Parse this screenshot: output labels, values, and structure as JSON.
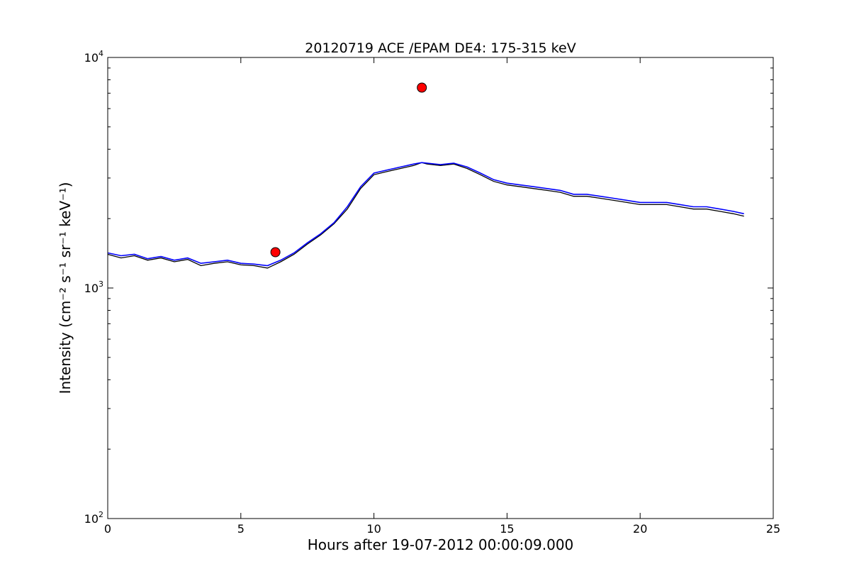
{
  "chart_data": {
    "type": "line",
    "title": "20120719 ACE /EPAM DE4: 175-315 keV",
    "xlabel": "Hours after 19-07-2012 00:00:09.000",
    "ylabel": "Intensity (cm⁻² s⁻¹ sr⁻¹ keV⁻¹)",
    "xlim": [
      0,
      25
    ],
    "ylim": [
      100,
      10000
    ],
    "yscale": "log",
    "grid": false,
    "x_ticks": [
      {
        "value": 0,
        "label": "0"
      },
      {
        "value": 5,
        "label": "5"
      },
      {
        "value": 10,
        "label": "10"
      },
      {
        "value": 15,
        "label": "15"
      },
      {
        "value": 20,
        "label": "20"
      },
      {
        "value": 25,
        "label": "25"
      }
    ],
    "y_ticks": [
      {
        "value": 100,
        "base": "10",
        "exp": "2"
      },
      {
        "value": 1000,
        "base": "10",
        "exp": "3"
      },
      {
        "value": 10000,
        "base": "10",
        "exp": "4"
      }
    ],
    "series": [
      {
        "color": "#000000",
        "x": [
          0.0,
          0.5,
          1.0,
          1.5,
          2.0,
          2.5,
          3.0,
          3.5,
          4.0,
          4.5,
          5.0,
          5.5,
          6.0,
          6.5,
          7.0,
          7.5,
          8.0,
          8.5,
          9.0,
          9.5,
          10.0,
          10.5,
          11.0,
          11.5,
          11.8,
          12.0,
          12.5,
          13.0,
          13.5,
          14.0,
          14.5,
          15.0,
          15.5,
          16.0,
          16.5,
          17.0,
          17.5,
          18.0,
          18.5,
          19.0,
          19.5,
          20.0,
          20.5,
          21.0,
          21.5,
          22.0,
          22.5,
          23.0,
          23.5,
          23.9
        ],
        "y": [
          1400,
          1350,
          1380,
          1320,
          1350,
          1300,
          1330,
          1250,
          1280,
          1300,
          1260,
          1250,
          1220,
          1300,
          1400,
          1550,
          1700,
          1900,
          2200,
          2700,
          3100,
          3200,
          3300,
          3400,
          3500,
          3450,
          3400,
          3450,
          3300,
          3100,
          2900,
          2800,
          2750,
          2700,
          2650,
          2600,
          2500,
          2500,
          2450,
          2400,
          2350,
          2300,
          2300,
          2300,
          2250,
          2200,
          2200,
          2150,
          2100,
          2050
        ]
      },
      {
        "color": "#0000ff",
        "x": [
          0.0,
          0.5,
          1.0,
          1.5,
          2.0,
          2.5,
          3.0,
          3.5,
          4.0,
          4.5,
          5.0,
          5.5,
          6.0,
          6.5,
          7.0,
          7.5,
          8.0,
          8.5,
          9.0,
          9.5,
          10.0,
          10.5,
          11.0,
          11.5,
          11.8,
          12.0,
          12.5,
          13.0,
          13.5,
          14.0,
          14.5,
          15.0,
          15.5,
          16.0,
          16.5,
          17.0,
          17.5,
          18.0,
          18.5,
          19.0,
          19.5,
          20.0,
          20.5,
          21.0,
          21.5,
          22.0,
          22.5,
          23.0,
          23.5,
          23.9
        ],
        "y": [
          1420,
          1380,
          1400,
          1340,
          1370,
          1320,
          1350,
          1280,
          1300,
          1320,
          1280,
          1270,
          1250,
          1320,
          1420,
          1570,
          1720,
          1920,
          2250,
          2750,
          3150,
          3250,
          3350,
          3450,
          3500,
          3480,
          3430,
          3480,
          3350,
          3150,
          2950,
          2850,
          2800,
          2750,
          2700,
          2650,
          2550,
          2550,
          2500,
          2450,
          2400,
          2350,
          2350,
          2350,
          2300,
          2250,
          2250,
          2200,
          2150,
          2100
        ]
      }
    ],
    "markers": [
      {
        "x": 6.3,
        "y": 1430,
        "color": "#ff0000"
      },
      {
        "x": 11.8,
        "y": 7400,
        "color": "#ff0000"
      }
    ]
  }
}
